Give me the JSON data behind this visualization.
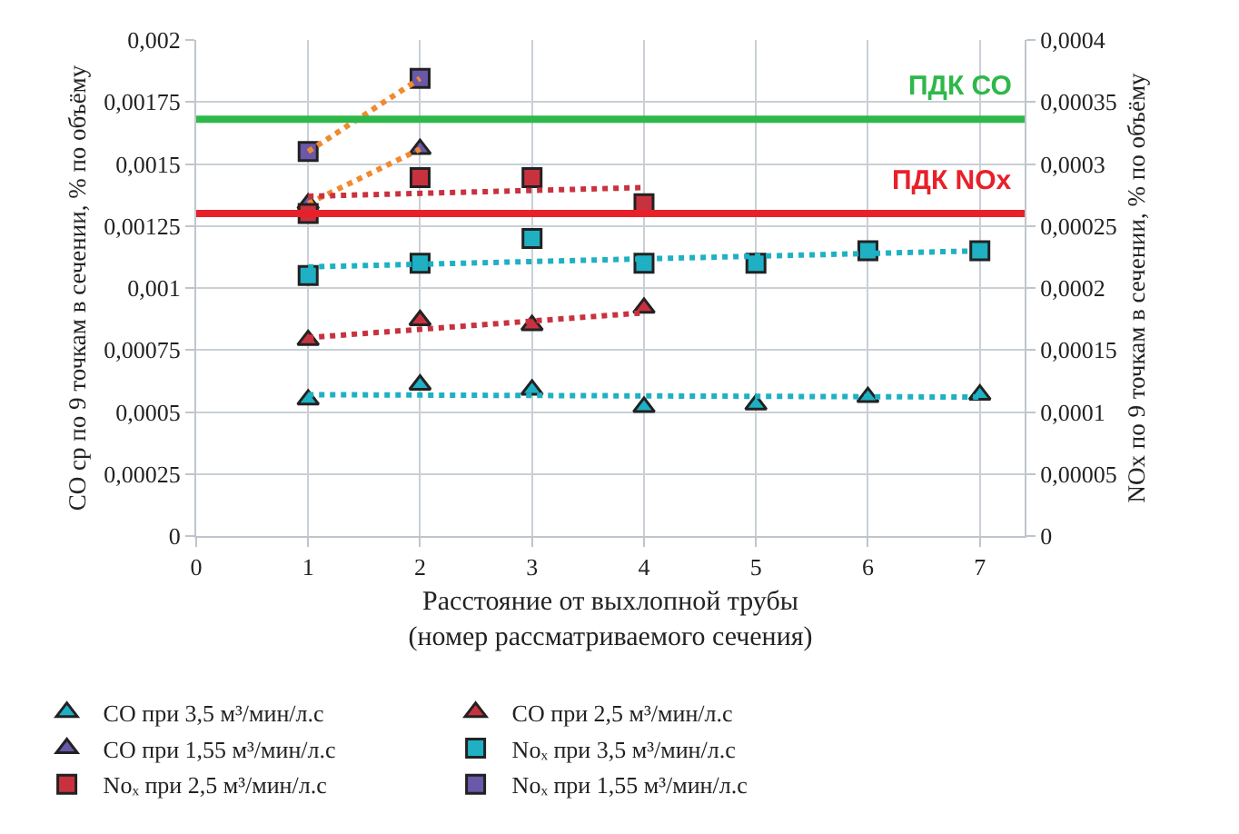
{
  "chart_data": {
    "type": "scatter",
    "xlabel": "Расстояние от выхлопной трубы\n(номер рассматриваемого сечения)",
    "ylabel": "СО ср по 9 точкам в сечении, % по объёму",
    "y2label": "NOx по 9 точкам в сечении, % по объёму",
    "xlim": [
      0,
      7.4
    ],
    "xticks": [
      0,
      1,
      2,
      3,
      4,
      5,
      6,
      7
    ],
    "ylim": [
      0,
      0.002
    ],
    "yticks": [
      0,
      {
        "value": 0.00025,
        "label": "0,00025"
      },
      {
        "value": 0.0005,
        "label": "0,0005"
      },
      {
        "value": 0.00075,
        "label": "0,00075"
      },
      {
        "value": 0.001,
        "label": "0,001"
      },
      {
        "value": 0.00125,
        "label": "0,00125"
      },
      {
        "value": 0.0015,
        "label": "0,0015"
      },
      {
        "value": 0.00175,
        "label": "0,00175"
      },
      {
        "value": 0.002,
        "label": "0,002"
      }
    ],
    "y2lim": [
      0,
      0.0004
    ],
    "y2ticks": [
      0,
      {
        "value": 5e-05,
        "label": "0,00005"
      },
      {
        "value": 0.0001,
        "label": "0,0001"
      },
      {
        "value": 0.00015,
        "label": "0,00015"
      },
      {
        "value": 0.0002,
        "label": "0,0002"
      },
      {
        "value": 0.00025,
        "label": "0,00025"
      },
      {
        "value": 0.0003,
        "label": "0,0003"
      },
      {
        "value": 0.00035,
        "label": "0,00035"
      },
      {
        "value": 0.0004,
        "label": "0,0004"
      }
    ],
    "grid": true,
    "legend": "bottom",
    "ref_lines": [
      {
        "axis": "y",
        "value": 0.00168,
        "label": "ПДК СО",
        "color": "#2eb84a"
      },
      {
        "axis": "y2",
        "value": 0.00026,
        "label": "ПДК NOx",
        "color": "#e8202a"
      }
    ],
    "series": [
      {
        "name": "СО при 3,5 м³/мин/л.с",
        "color": "#1fb0c4",
        "marker": "triangle",
        "x": [
          1,
          2,
          3,
          4,
          5,
          6,
          7
        ],
        "values": [
          0.00055,
          0.00061,
          0.00059,
          0.00052,
          0.00053,
          0.00056,
          0.00057
        ]
      },
      {
        "name": "СО при 2,5 м³/мин/л.с",
        "color": "#c8323f",
        "marker": "triangle",
        "x": [
          1,
          2,
          3,
          4
        ],
        "values": [
          0.00079,
          0.00087,
          0.00085,
          0.00092
        ]
      },
      {
        "name": "СО при 1,55 м³/мин/л.с",
        "color": "#6a58a8",
        "marker": "triangle",
        "x": [
          1,
          2
        ],
        "values": [
          0.00134,
          0.00156
        ]
      },
      {
        "name": "Noₓ при 3,5 м³/мин/л.с",
        "color": "#1fb0c4",
        "marker": "square",
        "axis": "y2",
        "x": [
          1,
          2,
          3,
          4,
          5,
          6,
          7
        ],
        "values": [
          0.00021,
          0.00022,
          0.00024,
          0.00022,
          0.00022,
          0.00023,
          0.00023
        ]
      },
      {
        "name": "Noₓ при 2,5 м³/мин/л.с",
        "color": "#c8323f",
        "marker": "square",
        "axis": "y2",
        "x": [
          1,
          2,
          3,
          4
        ],
        "values": [
          0.00026,
          0.000289,
          0.000289,
          0.000268
        ]
      },
      {
        "name": "Noₓ при 1,55 м³/мин/л.с",
        "color": "#6a58a8",
        "marker": "square",
        "axis": "y2",
        "x": [
          1,
          2
        ],
        "values": [
          0.00031,
          0.000369
        ]
      },
      {
        "type": "line",
        "color": "#1fb0c4",
        "marker": "none",
        "line_style": "dotted",
        "x": [
          1,
          7
        ],
        "values": [
          0.00057,
          0.00056
        ]
      },
      {
        "type": "line",
        "color": "#c8323f",
        "marker": "none",
        "line_style": "dotted",
        "x": [
          1,
          4
        ],
        "values": [
          0.0008,
          0.0009
        ]
      },
      {
        "type": "line",
        "color": "#f08a30",
        "marker": "none",
        "line_style": "dotted",
        "x": [
          1,
          2
        ],
        "values": [
          0.00134,
          0.00156
        ]
      },
      {
        "type": "line",
        "color": "#1fb0c4",
        "marker": "none",
        "line_style": "dotted",
        "axis": "y2",
        "x": [
          1,
          7
        ],
        "values": [
          0.000217,
          0.00023
        ]
      },
      {
        "type": "line",
        "color": "#c8323f",
        "marker": "none",
        "line_style": "dotted",
        "axis": "y2",
        "x": [
          1,
          4
        ],
        "values": [
          0.000274,
          0.000281
        ]
      },
      {
        "type": "line",
        "color": "#f08a30",
        "marker": "none",
        "line_style": "dotted",
        "axis": "y2",
        "x": [
          1,
          2
        ],
        "values": [
          0.00031,
          0.000369
        ]
      }
    ]
  }
}
